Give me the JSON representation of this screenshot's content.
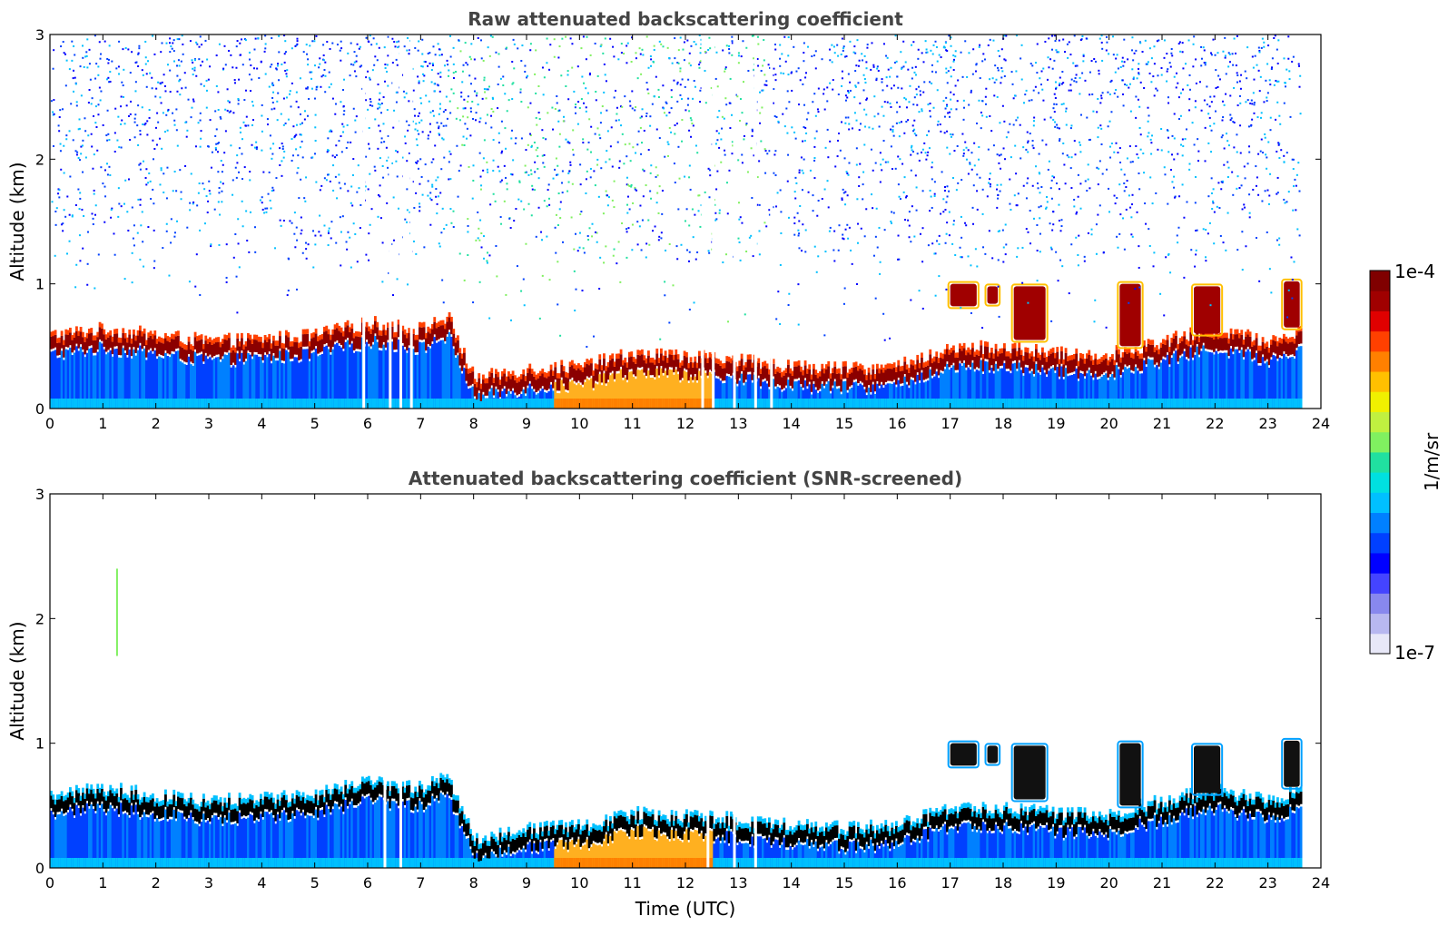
{
  "chart_data": [
    {
      "type": "heatmap",
      "title": "Raw attenuated backscattering coefficient",
      "xlabel": "",
      "ylabel": "Altitude (km)",
      "xlim": [
        0,
        24
      ],
      "ylim": [
        0,
        3
      ],
      "xticks": [
        "0",
        "1",
        "2",
        "3",
        "4",
        "5",
        "6",
        "7",
        "8",
        "9",
        "10",
        "11",
        "12",
        "13",
        "14",
        "15",
        "16",
        "17",
        "18",
        "19",
        "20",
        "21",
        "22",
        "23",
        "24"
      ],
      "yticks": [
        "0",
        "1",
        "2",
        "3"
      ],
      "screened": false,
      "data_end_hour": 23.6,
      "boundary_layer_top_km": [
        [
          0,
          0.55
        ],
        [
          1,
          0.6
        ],
        [
          2,
          0.55
        ],
        [
          3,
          0.5
        ],
        [
          4,
          0.52
        ],
        [
          5,
          0.55
        ],
        [
          6,
          0.65
        ],
        [
          7,
          0.6
        ],
        [
          7.5,
          0.7
        ],
        [
          8,
          0.2
        ],
        [
          9,
          0.28
        ],
        [
          10,
          0.3
        ],
        [
          11,
          0.4
        ],
        [
          12,
          0.38
        ],
        [
          13,
          0.35
        ],
        [
          14,
          0.3
        ],
        [
          15,
          0.28
        ],
        [
          16,
          0.3
        ],
        [
          17,
          0.45
        ],
        [
          18,
          0.45
        ],
        [
          19,
          0.4
        ],
        [
          20,
          0.4
        ],
        [
          21,
          0.5
        ],
        [
          22,
          0.6
        ],
        [
          23,
          0.5
        ],
        [
          23.6,
          0.6
        ]
      ],
      "elevated_layers": [
        {
          "start": 17.0,
          "end": 17.5,
          "top_km": 1.0,
          "bottom_km": 0.82
        },
        {
          "start": 17.7,
          "end": 17.9,
          "top_km": 0.98,
          "bottom_km": 0.84
        },
        {
          "start": 18.2,
          "end": 18.8,
          "top_km": 0.98,
          "bottom_km": 0.55
        },
        {
          "start": 20.2,
          "end": 20.6,
          "top_km": 1.0,
          "bottom_km": 0.5
        },
        {
          "start": 21.6,
          "end": 22.1,
          "top_km": 0.98,
          "bottom_km": 0.6
        },
        {
          "start": 23.3,
          "end": 23.6,
          "top_km": 1.02,
          "bottom_km": 0.65
        }
      ]
    },
    {
      "type": "heatmap",
      "title": "Attenuated backscattering coefficient (SNR-screened)",
      "xlabel": "Time (UTC)",
      "ylabel": "Altitude (km)",
      "xlim": [
        0,
        24
      ],
      "ylim": [
        0,
        3
      ],
      "xticks": [
        "0",
        "1",
        "2",
        "3",
        "4",
        "5",
        "6",
        "7",
        "8",
        "9",
        "10",
        "11",
        "12",
        "13",
        "14",
        "15",
        "16",
        "17",
        "18",
        "19",
        "20",
        "21",
        "22",
        "23",
        "24"
      ],
      "yticks": [
        "0",
        "1",
        "2",
        "3"
      ],
      "screened": true,
      "data_end_hour": 23.6
    }
  ],
  "colorbar": {
    "label": "1/m/sr",
    "max_label": "1e-4",
    "min_label": "1e-7",
    "colors": [
      "#e8e8f8",
      "#b8b8f0",
      "#8888ee",
      "#4444ff",
      "#0000ff",
      "#0040ff",
      "#0080ff",
      "#00c0ff",
      "#00e0e0",
      "#20e0a0",
      "#80f060",
      "#c0f040",
      "#f0f000",
      "#ffc000",
      "#ff8000",
      "#ff4000",
      "#e00000",
      "#a00000",
      "#800000"
    ]
  }
}
